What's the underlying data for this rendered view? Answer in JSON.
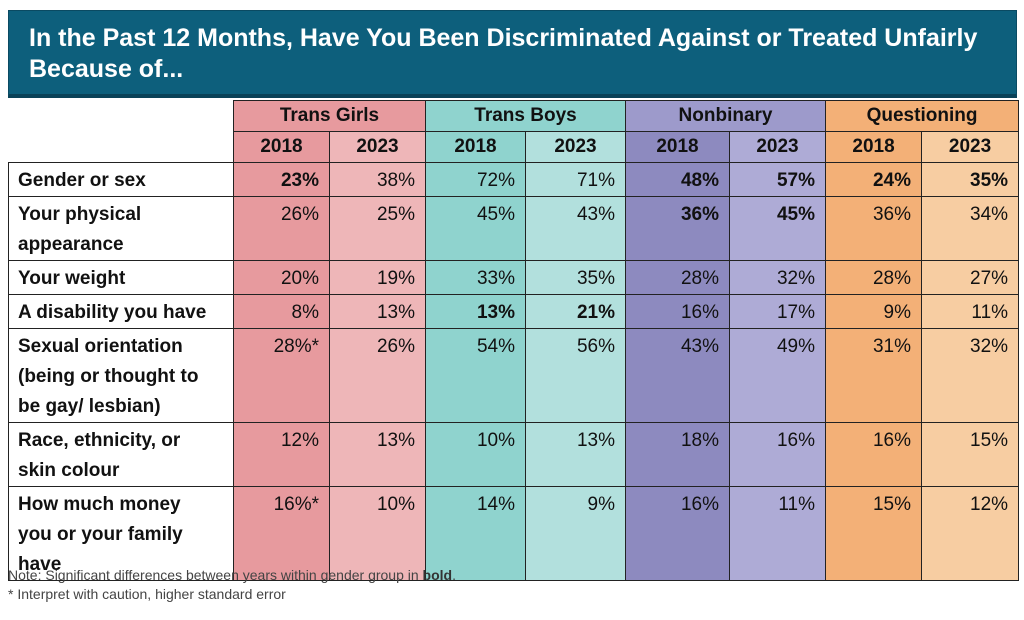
{
  "title": "In the Past 12 Months, Have You Been Discriminated Against or Treated Unfairly Because of...",
  "chart_data": {
    "type": "table",
    "title": "In the Past 12 Months, Have You Been Discriminated Against or Treated Unfairly Because of...",
    "groups": [
      "Trans Girls",
      "Trans Boys",
      "Nonbinary",
      "Questioning"
    ],
    "years": [
      "2018",
      "2023"
    ],
    "group_colors": {
      "Trans Girls": [
        "#e79a9e",
        "#eeb6b8"
      ],
      "Trans Boys": [
        "#8fd3ce",
        "#b2e0dd"
      ],
      "Nonbinary": [
        "#8d8abf",
        "#aeabd6"
      ],
      "Questioning": [
        "#f3b077",
        "#f7cda2"
      ]
    },
    "rows": [
      {
        "label_lines": [
          "Gender or sex"
        ],
        "values": [
          "23%",
          "38%",
          "72%",
          "71%",
          "48%",
          "57%",
          "24%",
          "35%"
        ],
        "bold": [
          true,
          false,
          false,
          false,
          true,
          true,
          true,
          true
        ]
      },
      {
        "label_lines": [
          "Your physical",
          "appearance"
        ],
        "values": [
          "26%",
          "25%",
          "45%",
          "43%",
          "36%",
          "45%",
          "36%",
          "34%"
        ],
        "bold": [
          false,
          false,
          false,
          false,
          true,
          true,
          false,
          false
        ]
      },
      {
        "label_lines": [
          "Your weight"
        ],
        "values": [
          "20%",
          "19%",
          "33%",
          "35%",
          "28%",
          "32%",
          "28%",
          "27%"
        ],
        "bold": [
          false,
          false,
          false,
          false,
          false,
          false,
          false,
          false
        ]
      },
      {
        "label_lines": [
          "A disability you have"
        ],
        "values": [
          "8%",
          "13%",
          "13%",
          "21%",
          "16%",
          "17%",
          "9%",
          "11%"
        ],
        "bold": [
          false,
          false,
          true,
          true,
          false,
          false,
          false,
          false
        ]
      },
      {
        "label_lines": [
          "Sexual orientation",
          "(being or thought to",
          "be gay/ lesbian)"
        ],
        "values": [
          "28%*",
          "26%",
          "54%",
          "56%",
          "43%",
          "49%",
          "31%",
          "32%"
        ],
        "bold": [
          false,
          false,
          false,
          false,
          false,
          false,
          false,
          false
        ]
      },
      {
        "label_lines": [
          "Race, ethnicity, or",
          "skin colour"
        ],
        "values": [
          "12%",
          "13%",
          "10%",
          "13%",
          "18%",
          "16%",
          "16%",
          "15%"
        ],
        "bold": [
          false,
          false,
          false,
          false,
          false,
          false,
          false,
          false
        ]
      },
      {
        "label_lines": [
          "How much money",
          "you or your family",
          "have"
        ],
        "values": [
          "16%*",
          "10%",
          "14%",
          "9%",
          "16%",
          "11%",
          "15%",
          "12%"
        ],
        "bold": [
          false,
          false,
          false,
          false,
          false,
          false,
          false,
          false
        ]
      }
    ]
  },
  "notes": {
    "line1_prefix": "Note: Significant differences between years within gender group in ",
    "line1_bold": "bold",
    "line1_suffix": ".",
    "line2": "* Interpret with caution, higher standard error"
  }
}
